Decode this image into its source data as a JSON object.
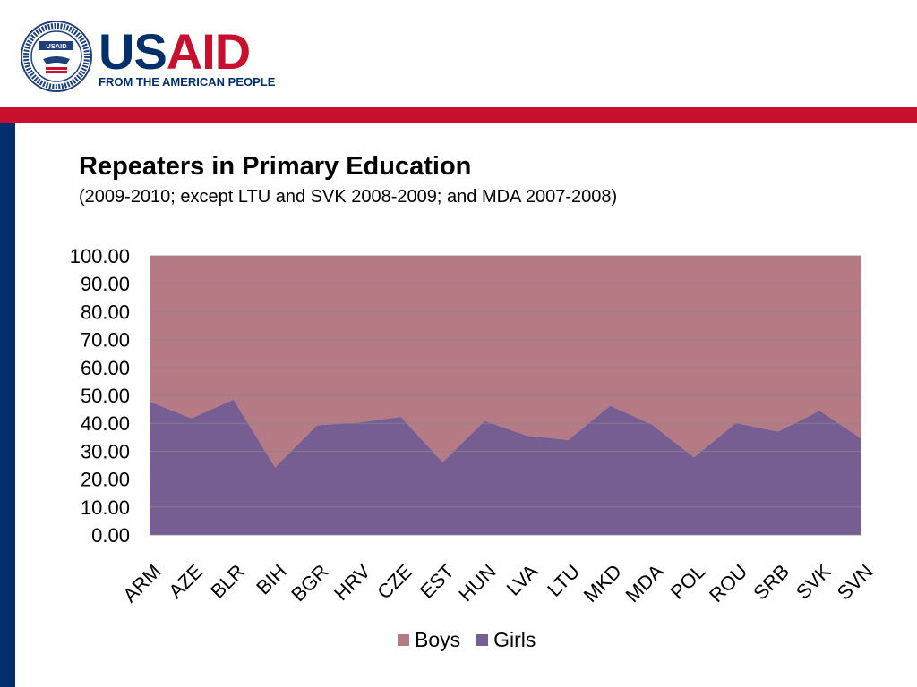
{
  "logo": {
    "wordmark_us": "US",
    "wordmark_aid": "AID",
    "tagline": "FROM THE AMERICAN PEOPLE",
    "seal_text": "UNITED STATES AGENCY INTERNATIONAL DEVELOPMENT",
    "seal_label": "USAID"
  },
  "colors": {
    "brand_blue": "#002f6c",
    "brand_red": "#c8102e",
    "boys": "#b57a84",
    "girls": "#765d92",
    "grid": "#888888"
  },
  "title": "Repeaters in Primary Education",
  "subtitle": "(2009-2010; except LTU and SVK 2008-2009; and MDA 2007-2008)",
  "chart_data": {
    "type": "area",
    "stacked": true,
    "categories": [
      "ARM",
      "AZE",
      "BLR",
      "BIH",
      "BGR",
      "HRV",
      "CZE",
      "EST",
      "HUN",
      "LVA",
      "LTU",
      "MKD",
      "MDA",
      "POL",
      "ROU",
      "SRB",
      "SVK",
      "SVN"
    ],
    "series": [
      {
        "name": "Girls",
        "values": [
          47.8,
          41.8,
          48.5,
          24.2,
          39.3,
          40.3,
          42.3,
          26.0,
          40.9,
          35.6,
          34.0,
          46.3,
          39.5,
          27.8,
          40.1,
          37.0,
          44.5,
          34.5
        ]
      },
      {
        "name": "Boys",
        "values": [
          52.2,
          58.2,
          51.5,
          75.8,
          60.7,
          59.7,
          57.7,
          74.0,
          59.1,
          64.4,
          66.0,
          53.7,
          60.5,
          72.2,
          59.9,
          63.0,
          55.5,
          65.5
        ]
      }
    ],
    "ylim": [
      0,
      100
    ],
    "yticks": [
      "0.00",
      "10.00",
      "20.00",
      "30.00",
      "40.00",
      "50.00",
      "60.00",
      "70.00",
      "80.00",
      "90.00",
      "100.00"
    ],
    "grid": true,
    "legend_position": "bottom",
    "xlabel": "",
    "ylabel": ""
  }
}
